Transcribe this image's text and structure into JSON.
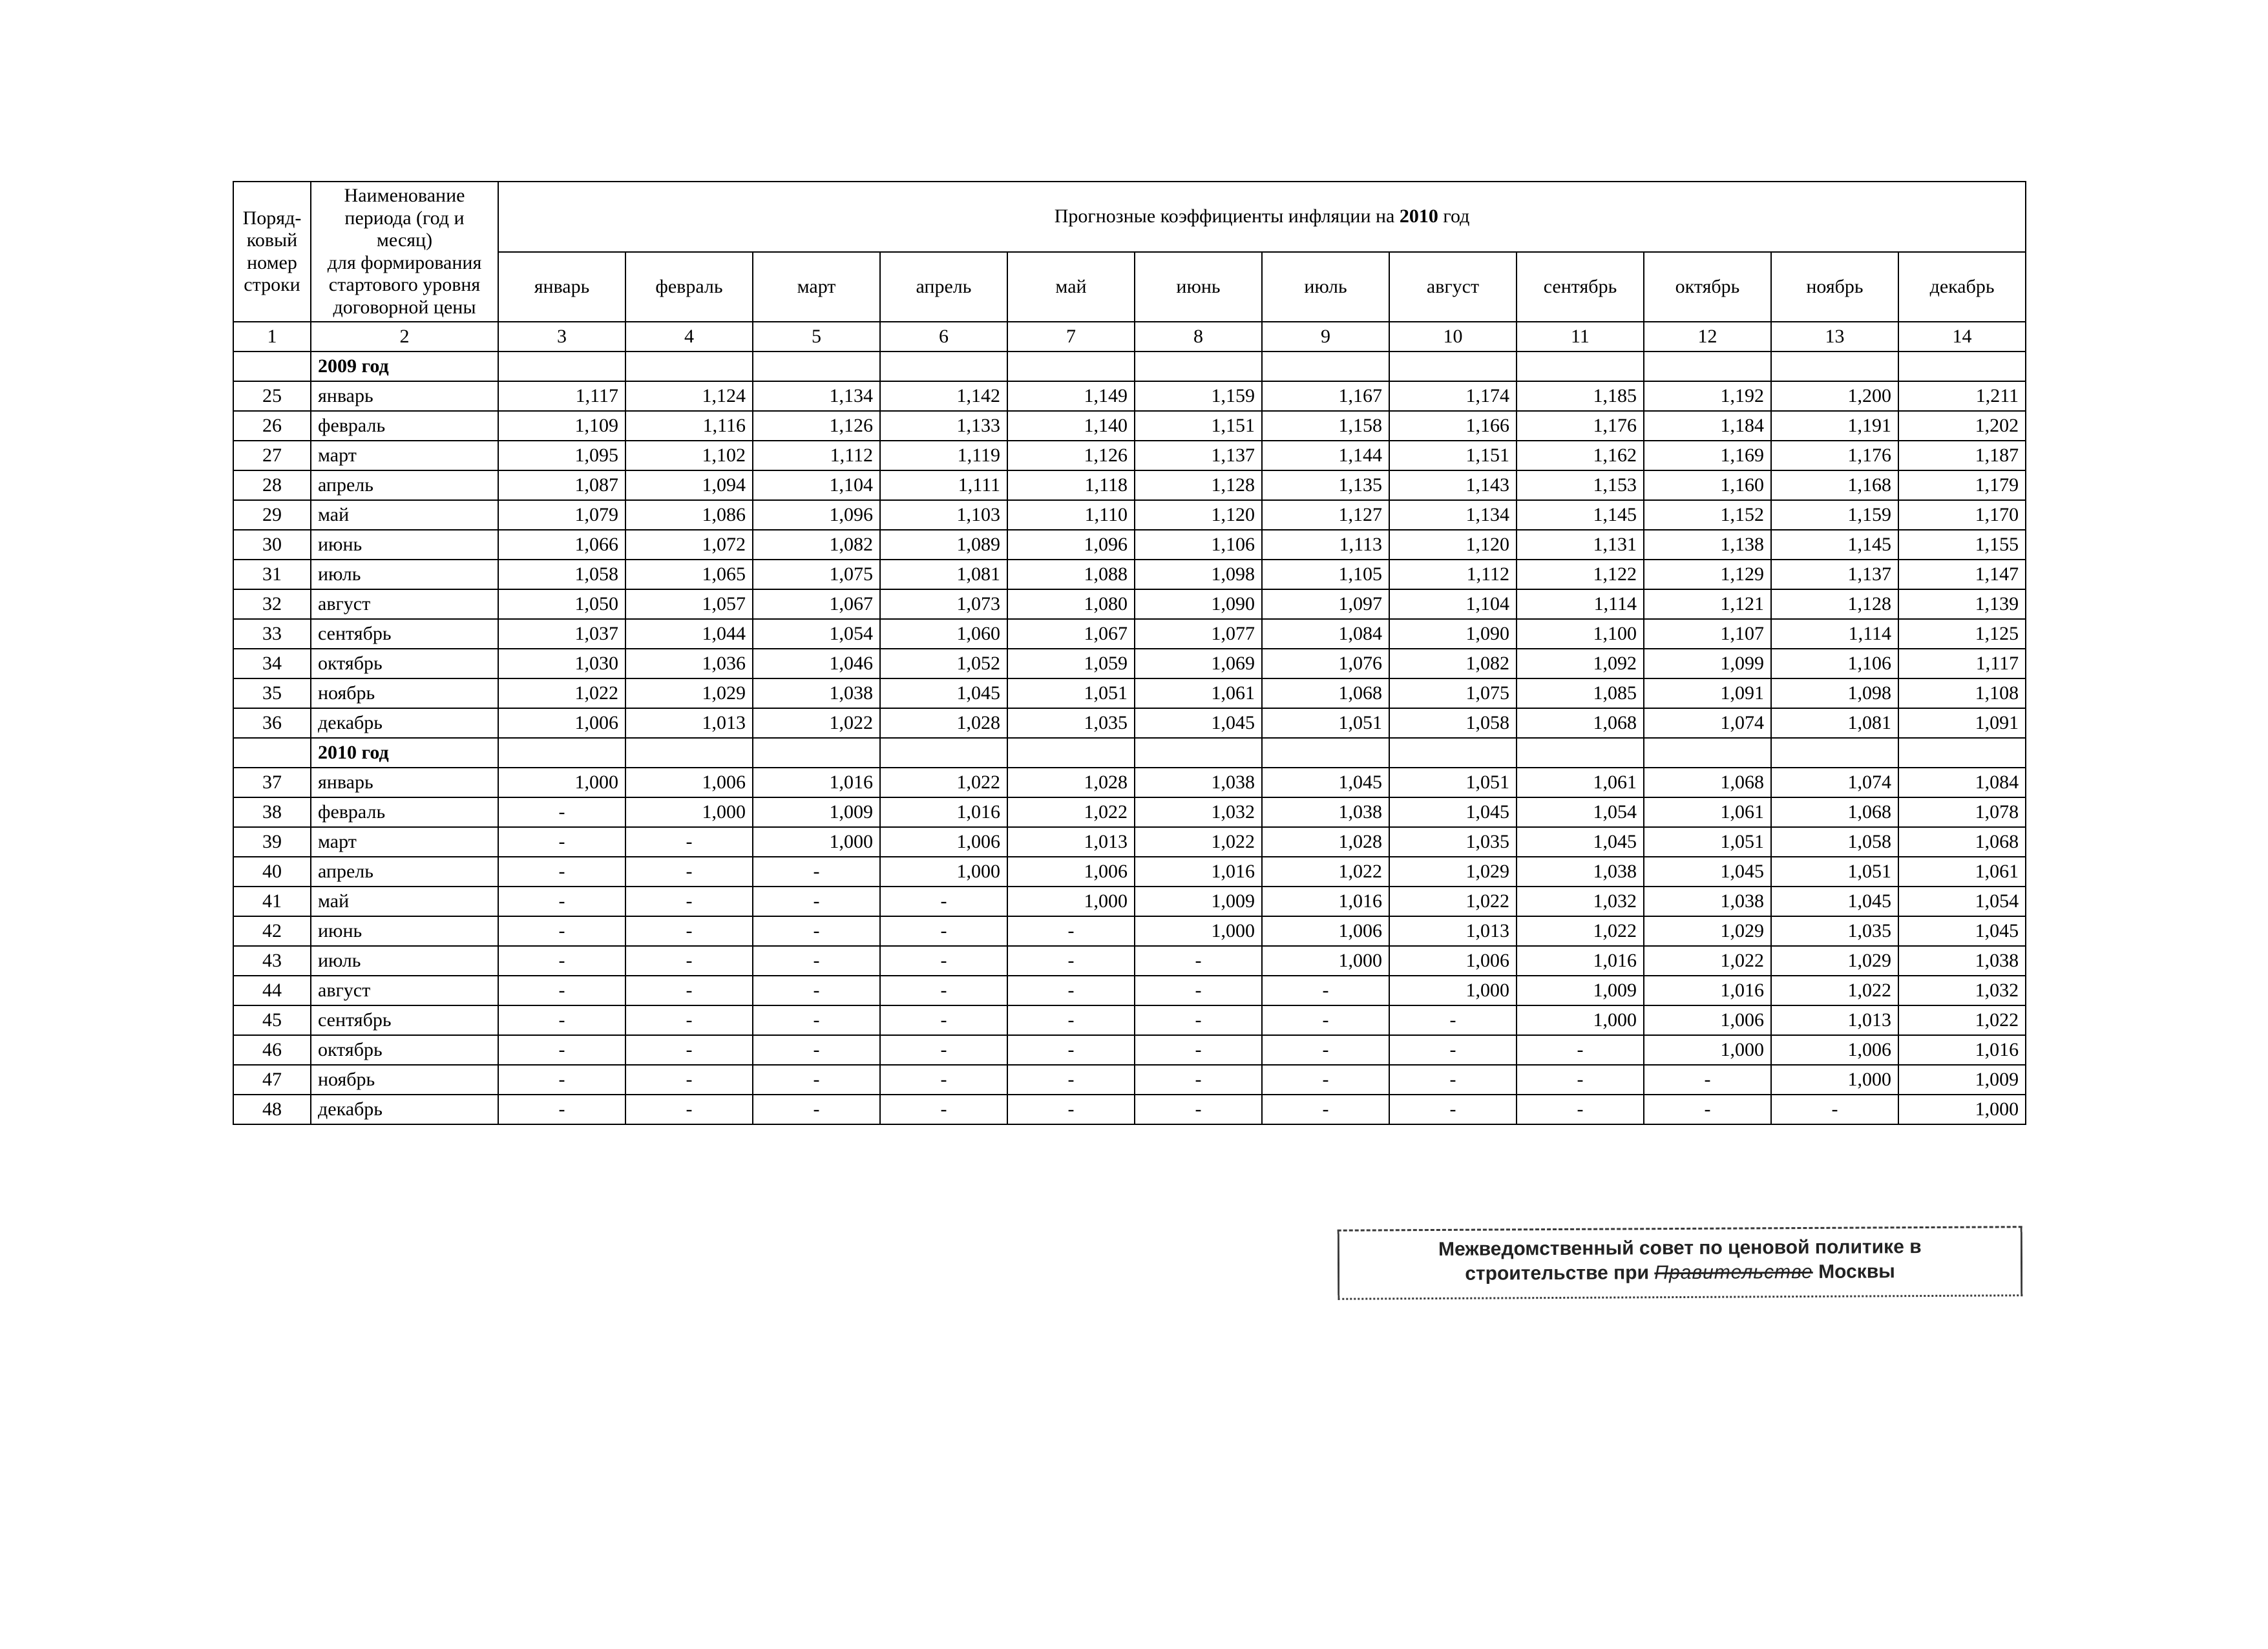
{
  "table": {
    "header": {
      "row_label": "Поряд-\nковый\nномер\nстроки",
      "name_label": "Наименование\nпериода (год и месяц)\nдля формирования\nстартового уровня\nдоговорной цены",
      "spanning_title_prefix": "Прогнозные коэффициенты инфляции на ",
      "spanning_title_year": "2010",
      "spanning_title_suffix": " год",
      "months": [
        "январь",
        "февраль",
        "март",
        "апрель",
        "май",
        "июнь",
        "июль",
        "август",
        "сентябрь",
        "октябрь",
        "ноябрь",
        "декабрь"
      ],
      "col_numbers": [
        "1",
        "2",
        "3",
        "4",
        "5",
        "6",
        "7",
        "8",
        "9",
        "10",
        "11",
        "12",
        "13",
        "14"
      ]
    },
    "sections": [
      {
        "year_label": "2009 год",
        "rows": [
          {
            "n": "25",
            "name": "январь",
            "v": [
              "1,117",
              "1,124",
              "1,134",
              "1,142",
              "1,149",
              "1,159",
              "1,167",
              "1,174",
              "1,185",
              "1,192",
              "1,200",
              "1,211"
            ]
          },
          {
            "n": "26",
            "name": "февраль",
            "v": [
              "1,109",
              "1,116",
              "1,126",
              "1,133",
              "1,140",
              "1,151",
              "1,158",
              "1,166",
              "1,176",
              "1,184",
              "1,191",
              "1,202"
            ]
          },
          {
            "n": "27",
            "name": "март",
            "v": [
              "1,095",
              "1,102",
              "1,112",
              "1,119",
              "1,126",
              "1,137",
              "1,144",
              "1,151",
              "1,162",
              "1,169",
              "1,176",
              "1,187"
            ]
          },
          {
            "n": "28",
            "name": "апрель",
            "v": [
              "1,087",
              "1,094",
              "1,104",
              "1,111",
              "1,118",
              "1,128",
              "1,135",
              "1,143",
              "1,153",
              "1,160",
              "1,168",
              "1,179"
            ]
          },
          {
            "n": "29",
            "name": "май",
            "v": [
              "1,079",
              "1,086",
              "1,096",
              "1,103",
              "1,110",
              "1,120",
              "1,127",
              "1,134",
              "1,145",
              "1,152",
              "1,159",
              "1,170"
            ]
          },
          {
            "n": "30",
            "name": "июнь",
            "v": [
              "1,066",
              "1,072",
              "1,082",
              "1,089",
              "1,096",
              "1,106",
              "1,113",
              "1,120",
              "1,131",
              "1,138",
              "1,145",
              "1,155"
            ]
          },
          {
            "n": "31",
            "name": "июль",
            "v": [
              "1,058",
              "1,065",
              "1,075",
              "1,081",
              "1,088",
              "1,098",
              "1,105",
              "1,112",
              "1,122",
              "1,129",
              "1,137",
              "1,147"
            ]
          },
          {
            "n": "32",
            "name": "август",
            "v": [
              "1,050",
              "1,057",
              "1,067",
              "1,073",
              "1,080",
              "1,090",
              "1,097",
              "1,104",
              "1,114",
              "1,121",
              "1,128",
              "1,139"
            ]
          },
          {
            "n": "33",
            "name": "сентябрь",
            "v": [
              "1,037",
              "1,044",
              "1,054",
              "1,060",
              "1,067",
              "1,077",
              "1,084",
              "1,090",
              "1,100",
              "1,107",
              "1,114",
              "1,125"
            ]
          },
          {
            "n": "34",
            "name": "октябрь",
            "v": [
              "1,030",
              "1,036",
              "1,046",
              "1,052",
              "1,059",
              "1,069",
              "1,076",
              "1,082",
              "1,092",
              "1,099",
              "1,106",
              "1,117"
            ]
          },
          {
            "n": "35",
            "name": "ноябрь",
            "v": [
              "1,022",
              "1,029",
              "1,038",
              "1,045",
              "1,051",
              "1,061",
              "1,068",
              "1,075",
              "1,085",
              "1,091",
              "1,098",
              "1,108"
            ]
          },
          {
            "n": "36",
            "name": "декабрь",
            "v": [
              "1,006",
              "1,013",
              "1,022",
              "1,028",
              "1,035",
              "1,045",
              "1,051",
              "1,058",
              "1,068",
              "1,074",
              "1,081",
              "1,091"
            ]
          }
        ]
      },
      {
        "year_label": "2010 год",
        "rows": [
          {
            "n": "37",
            "name": "январь",
            "v": [
              "1,000",
              "1,006",
              "1,016",
              "1,022",
              "1,028",
              "1,038",
              "1,045",
              "1,051",
              "1,061",
              "1,068",
              "1,074",
              "1,084"
            ]
          },
          {
            "n": "38",
            "name": "февраль",
            "v": [
              "-",
              "1,000",
              "1,009",
              "1,016",
              "1,022",
              "1,032",
              "1,038",
              "1,045",
              "1,054",
              "1,061",
              "1,068",
              "1,078"
            ]
          },
          {
            "n": "39",
            "name": "март",
            "v": [
              "-",
              "-",
              "1,000",
              "1,006",
              "1,013",
              "1,022",
              "1,028",
              "1,035",
              "1,045",
              "1,051",
              "1,058",
              "1,068"
            ]
          },
          {
            "n": "40",
            "name": "апрель",
            "v": [
              "-",
              "-",
              "-",
              "1,000",
              "1,006",
              "1,016",
              "1,022",
              "1,029",
              "1,038",
              "1,045",
              "1,051",
              "1,061"
            ]
          },
          {
            "n": "41",
            "name": "май",
            "v": [
              "-",
              "-",
              "-",
              "-",
              "1,000",
              "1,009",
              "1,016",
              "1,022",
              "1,032",
              "1,038",
              "1,045",
              "1,054"
            ]
          },
          {
            "n": "42",
            "name": "июнь",
            "v": [
              "-",
              "-",
              "-",
              "-",
              "-",
              "1,000",
              "1,006",
              "1,013",
              "1,022",
              "1,029",
              "1,035",
              "1,045"
            ]
          },
          {
            "n": "43",
            "name": "июль",
            "v": [
              "-",
              "-",
              "-",
              "-",
              "-",
              "-",
              "1,000",
              "1,006",
              "1,016",
              "1,022",
              "1,029",
              "1,038"
            ]
          },
          {
            "n": "44",
            "name": "август",
            "v": [
              "-",
              "-",
              "-",
              "-",
              "-",
              "-",
              "-",
              "1,000",
              "1,009",
              "1,016",
              "1,022",
              "1,032"
            ]
          },
          {
            "n": "45",
            "name": "сентябрь",
            "v": [
              "-",
              "-",
              "-",
              "-",
              "-",
              "-",
              "-",
              "-",
              "1,000",
              "1,006",
              "1,013",
              "1,022"
            ]
          },
          {
            "n": "46",
            "name": "октябрь",
            "v": [
              "-",
              "-",
              "-",
              "-",
              "-",
              "-",
              "-",
              "-",
              "-",
              "1,000",
              "1,006",
              "1,016"
            ]
          },
          {
            "n": "47",
            "name": "ноябрь",
            "v": [
              "-",
              "-",
              "-",
              "-",
              "-",
              "-",
              "-",
              "-",
              "-",
              "-",
              "1,000",
              "1,009"
            ]
          },
          {
            "n": "48",
            "name": "декабрь",
            "v": [
              "-",
              "-",
              "-",
              "-",
              "-",
              "-",
              "-",
              "-",
              "-",
              "-",
              "-",
              "1,000"
            ]
          }
        ]
      }
    ]
  },
  "stamp": {
    "line1": "Межведомственный совет по ценовой политике в",
    "line2_prefix": "строительстве при ",
    "line2_scribble": "Правительстве",
    "line2_suffix": " Москвы"
  }
}
